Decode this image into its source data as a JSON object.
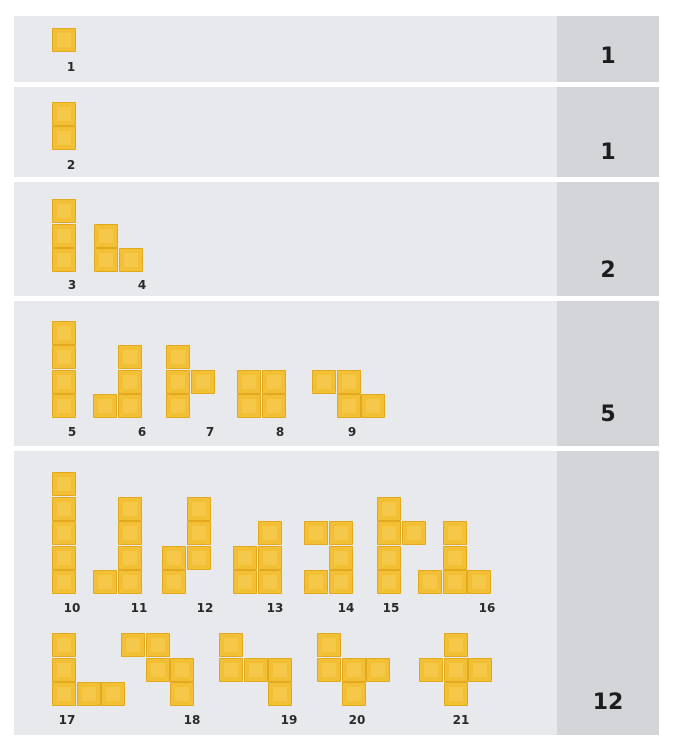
{
  "rows": [
    {
      "count": "1",
      "pieces": [
        {
          "label": "1",
          "cells": [
            [
              0,
              0
            ]
          ]
        }
      ]
    },
    {
      "count": "1",
      "pieces": [
        {
          "label": "2",
          "cells": [
            [
              0,
              0
            ],
            [
              0,
              1
            ]
          ]
        }
      ]
    },
    {
      "count": "2",
      "pieces": [
        {
          "label": "3",
          "cells": [
            [
              0,
              0
            ],
            [
              0,
              1
            ],
            [
              0,
              2
            ]
          ]
        },
        {
          "label": "4",
          "cells": [
            [
              0,
              0
            ],
            [
              0,
              1
            ],
            [
              1,
              1
            ]
          ]
        }
      ]
    },
    {
      "count": "5",
      "pieces": [
        {
          "label": "5",
          "cells": [
            [
              0,
              0
            ],
            [
              0,
              1
            ],
            [
              0,
              2
            ],
            [
              0,
              3
            ]
          ]
        },
        {
          "label": "6",
          "cells": [
            [
              1,
              0
            ],
            [
              1,
              1
            ],
            [
              1,
              2
            ],
            [
              0,
              2
            ]
          ]
        },
        {
          "label": "7",
          "cells": [
            [
              0,
              0
            ],
            [
              0,
              1
            ],
            [
              0,
              2
            ],
            [
              1,
              1
            ]
          ]
        },
        {
          "label": "8",
          "cells": [
            [
              0,
              0
            ],
            [
              1,
              0
            ],
            [
              0,
              1
            ],
            [
              1,
              1
            ]
          ]
        },
        {
          "label": "9",
          "cells": [
            [
              0,
              0
            ],
            [
              1,
              0
            ],
            [
              1,
              1
            ],
            [
              2,
              1
            ]
          ]
        }
      ]
    },
    {
      "count": "12",
      "pieces": [
        {
          "label": "10",
          "cells": [
            [
              0,
              0
            ],
            [
              0,
              1
            ],
            [
              0,
              2
            ],
            [
              0,
              3
            ],
            [
              0,
              4
            ]
          ]
        },
        {
          "label": "11",
          "cells": [
            [
              1,
              0
            ],
            [
              1,
              1
            ],
            [
              1,
              2
            ],
            [
              1,
              3
            ],
            [
              0,
              3
            ]
          ]
        },
        {
          "label": "12",
          "cells": [
            [
              1,
              0
            ],
            [
              1,
              1
            ],
            [
              1,
              2
            ],
            [
              0,
              2
            ],
            [
              0,
              3
            ]
          ]
        },
        {
          "label": "13",
          "cells": [
            [
              1,
              0
            ],
            [
              0,
              1
            ],
            [
              1,
              1
            ],
            [
              0,
              2
            ],
            [
              1,
              2
            ]
          ]
        },
        {
          "label": "14",
          "cells": [
            [
              0,
              0
            ],
            [
              1,
              0
            ],
            [
              1,
              1
            ],
            [
              0,
              2
            ],
            [
              1,
              2
            ]
          ]
        },
        {
          "label": "15",
          "cells": [
            [
              0,
              0
            ],
            [
              0,
              1
            ],
            [
              1,
              1
            ],
            [
              0,
              2
            ],
            [
              0,
              3
            ]
          ]
        },
        {
          "label": "16",
          "cells": [
            [
              1,
              0
            ],
            [
              1,
              1
            ],
            [
              0,
              2
            ],
            [
              1,
              2
            ],
            [
              2,
              2
            ]
          ]
        },
        {
          "label": "17",
          "cells": [
            [
              0,
              0
            ],
            [
              0,
              1
            ],
            [
              0,
              2
            ],
            [
              1,
              2
            ],
            [
              2,
              2
            ]
          ]
        },
        {
          "label": "18",
          "cells": [
            [
              0,
              0
            ],
            [
              1,
              0
            ],
            [
              1,
              1
            ],
            [
              2,
              1
            ],
            [
              2,
              2
            ]
          ]
        },
        {
          "label": "19",
          "cells": [
            [
              0,
              0
            ],
            [
              0,
              1
            ],
            [
              1,
              1
            ],
            [
              2,
              1
            ],
            [
              2,
              2
            ]
          ]
        },
        {
          "label": "20",
          "cells": [
            [
              0,
              0
            ],
            [
              0,
              1
            ],
            [
              1,
              1
            ],
            [
              2,
              1
            ],
            [
              1,
              2
            ]
          ]
        },
        {
          "label": "21",
          "cells": [
            [
              1,
              0
            ],
            [
              0,
              1
            ],
            [
              1,
              1
            ],
            [
              2,
              1
            ],
            [
              1,
              2
            ]
          ]
        }
      ]
    }
  ]
}
